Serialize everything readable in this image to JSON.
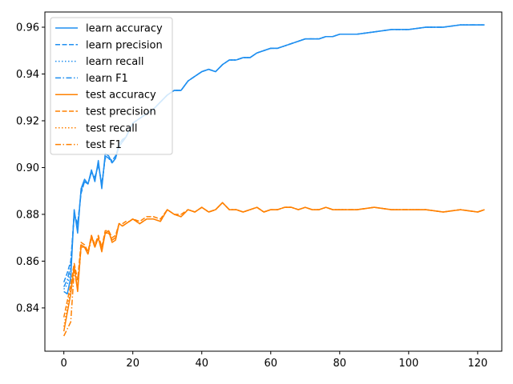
{
  "chart_data": {
    "type": "line",
    "title": "",
    "xlabel": "",
    "ylabel": "",
    "xlim": [
      -5.5,
      127
    ],
    "ylim": [
      0.8215,
      0.9665
    ],
    "xticks": [
      0,
      20,
      40,
      60,
      80,
      100,
      120
    ],
    "yticks": [
      0.84,
      0.86,
      0.88,
      0.9,
      0.92,
      0.94,
      0.96
    ],
    "ytick_labels": [
      "0.84",
      "0.86",
      "0.88",
      "0.90",
      "0.92",
      "0.94",
      "0.96"
    ],
    "grid": false,
    "legend_position": "top-left",
    "colors": {
      "learn": "#1f8ff0",
      "test": "#ff8000"
    },
    "series": [
      {
        "name": "learn accuracy",
        "group": "learn",
        "dash": "solid",
        "x": [
          0,
          1,
          2,
          3,
          4,
          5,
          6,
          7,
          8,
          9,
          10,
          11,
          12,
          13,
          14,
          15,
          16,
          17,
          18,
          19,
          20,
          22,
          24,
          26,
          28,
          30,
          32,
          34,
          36,
          38,
          40,
          42,
          44,
          46,
          48,
          50,
          52,
          54,
          56,
          58,
          60,
          62,
          64,
          66,
          68,
          70,
          72,
          74,
          76,
          78,
          80,
          85,
          90,
          95,
          100,
          105,
          110,
          115,
          120,
          122
        ],
        "y": [
          0.847,
          0.846,
          0.853,
          0.882,
          0.872,
          0.891,
          0.895,
          0.893,
          0.899,
          0.894,
          0.903,
          0.891,
          0.906,
          0.905,
          0.902,
          0.904,
          0.91,
          0.912,
          0.913,
          0.916,
          0.919,
          0.921,
          0.923,
          0.925,
          0.928,
          0.931,
          0.933,
          0.933,
          0.937,
          0.939,
          0.941,
          0.942,
          0.941,
          0.944,
          0.946,
          0.946,
          0.947,
          0.947,
          0.949,
          0.95,
          0.951,
          0.951,
          0.952,
          0.953,
          0.954,
          0.955,
          0.955,
          0.955,
          0.956,
          0.956,
          0.957,
          0.957,
          0.958,
          0.959,
          0.959,
          0.96,
          0.96,
          0.961,
          0.961,
          0.961
        ]
      },
      {
        "name": "learn precision",
        "group": "learn",
        "dash": "dashed",
        "x": [
          0,
          1,
          2,
          3,
          4,
          5,
          6,
          7,
          8,
          9,
          10,
          11,
          12,
          13,
          14,
          15,
          16,
          17,
          18,
          19,
          20,
          22,
          24,
          26,
          28,
          30,
          32,
          34,
          36,
          38,
          40,
          42,
          44,
          46,
          48,
          50,
          52,
          54,
          56,
          58,
          60,
          62,
          64,
          66,
          68,
          70,
          72,
          74,
          76,
          78,
          80,
          85,
          90,
          95,
          100,
          105,
          110,
          115,
          120,
          122
        ],
        "y": [
          0.851,
          0.855,
          0.86,
          0.88,
          0.876,
          0.889,
          0.894,
          0.893,
          0.898,
          0.896,
          0.901,
          0.893,
          0.904,
          0.904,
          0.903,
          0.905,
          0.909,
          0.911,
          0.913,
          0.916,
          0.919,
          0.921,
          0.923,
          0.925,
          0.928,
          0.931,
          0.933,
          0.933,
          0.937,
          0.939,
          0.941,
          0.942,
          0.941,
          0.944,
          0.946,
          0.946,
          0.947,
          0.947,
          0.949,
          0.95,
          0.951,
          0.951,
          0.952,
          0.953,
          0.954,
          0.955,
          0.955,
          0.955,
          0.956,
          0.956,
          0.957,
          0.957,
          0.958,
          0.959,
          0.959,
          0.96,
          0.96,
          0.961,
          0.961,
          0.961
        ]
      },
      {
        "name": "learn recall",
        "group": "learn",
        "dash": "dotted",
        "x": [
          0,
          1,
          2,
          3,
          4,
          5,
          6,
          7,
          8,
          9,
          10,
          11,
          12,
          13,
          14,
          15,
          16,
          17,
          18,
          19,
          20,
          22,
          24,
          26,
          28,
          30,
          32,
          34,
          36,
          38,
          40,
          42,
          44,
          46,
          48,
          50,
          52,
          54,
          56,
          58,
          60,
          62,
          64,
          66,
          68,
          70,
          72,
          74,
          76,
          78,
          80,
          85,
          90,
          95,
          100,
          105,
          110,
          115,
          120,
          122
        ],
        "y": [
          0.848,
          0.85,
          0.856,
          0.881,
          0.874,
          0.89,
          0.894,
          0.893,
          0.898,
          0.895,
          0.902,
          0.892,
          0.905,
          0.904,
          0.902,
          0.904,
          0.909,
          0.911,
          0.913,
          0.916,
          0.919,
          0.921,
          0.923,
          0.925,
          0.928,
          0.931,
          0.933,
          0.933,
          0.937,
          0.939,
          0.941,
          0.942,
          0.941,
          0.944,
          0.946,
          0.946,
          0.947,
          0.947,
          0.949,
          0.95,
          0.951,
          0.951,
          0.952,
          0.953,
          0.954,
          0.955,
          0.955,
          0.955,
          0.956,
          0.956,
          0.957,
          0.957,
          0.958,
          0.959,
          0.959,
          0.96,
          0.96,
          0.961,
          0.961,
          0.961
        ]
      },
      {
        "name": "learn F1",
        "group": "learn",
        "dash": "dashdot",
        "x": [
          0,
          1,
          2,
          3,
          4,
          5,
          6,
          7,
          8,
          9,
          10,
          11,
          12,
          13,
          14,
          15,
          16,
          17,
          18,
          19,
          20,
          22,
          24,
          26,
          28,
          30,
          32,
          34,
          36,
          38,
          40,
          42,
          44,
          46,
          48,
          50,
          52,
          54,
          56,
          58,
          60,
          62,
          64,
          66,
          68,
          70,
          72,
          74,
          76,
          78,
          80,
          85,
          90,
          95,
          100,
          105,
          110,
          115,
          120,
          122
        ],
        "y": [
          0.849,
          0.852,
          0.858,
          0.88,
          0.875,
          0.89,
          0.894,
          0.893,
          0.898,
          0.895,
          0.902,
          0.892,
          0.905,
          0.904,
          0.902,
          0.904,
          0.909,
          0.911,
          0.913,
          0.916,
          0.919,
          0.921,
          0.923,
          0.925,
          0.928,
          0.931,
          0.933,
          0.933,
          0.937,
          0.939,
          0.941,
          0.942,
          0.941,
          0.944,
          0.946,
          0.946,
          0.947,
          0.947,
          0.949,
          0.95,
          0.951,
          0.951,
          0.952,
          0.953,
          0.954,
          0.955,
          0.955,
          0.955,
          0.956,
          0.956,
          0.957,
          0.957,
          0.958,
          0.959,
          0.959,
          0.96,
          0.96,
          0.961,
          0.961,
          0.961
        ]
      },
      {
        "name": "test accuracy",
        "group": "test",
        "dash": "solid",
        "x": [
          0,
          1,
          2,
          3,
          4,
          5,
          6,
          7,
          8,
          9,
          10,
          11,
          12,
          13,
          14,
          15,
          16,
          17,
          18,
          19,
          20,
          22,
          24,
          26,
          28,
          30,
          32,
          34,
          36,
          38,
          40,
          42,
          44,
          46,
          48,
          50,
          52,
          54,
          56,
          58,
          60,
          62,
          64,
          66,
          68,
          70,
          72,
          74,
          76,
          78,
          80,
          85,
          90,
          95,
          100,
          105,
          110,
          115,
          120,
          122
        ],
        "y": [
          0.83,
          0.838,
          0.846,
          0.858,
          0.847,
          0.867,
          0.866,
          0.863,
          0.871,
          0.866,
          0.87,
          0.864,
          0.872,
          0.873,
          0.868,
          0.869,
          0.876,
          0.875,
          0.876,
          0.877,
          0.878,
          0.876,
          0.878,
          0.878,
          0.877,
          0.882,
          0.88,
          0.879,
          0.882,
          0.881,
          0.883,
          0.881,
          0.882,
          0.885,
          0.882,
          0.882,
          0.881,
          0.882,
          0.883,
          0.881,
          0.882,
          0.882,
          0.883,
          0.883,
          0.882,
          0.883,
          0.882,
          0.882,
          0.883,
          0.882,
          0.882,
          0.882,
          0.883,
          0.882,
          0.882,
          0.882,
          0.881,
          0.882,
          0.881,
          0.882
        ]
      },
      {
        "name": "test precision",
        "group": "test",
        "dash": "dashed",
        "x": [
          0,
          1,
          2,
          3,
          4,
          5,
          6,
          7,
          8,
          9,
          10,
          11,
          12,
          13,
          14,
          15,
          16,
          17,
          18,
          19,
          20,
          22,
          24,
          26,
          28,
          30,
          32,
          34,
          36,
          38,
          40,
          42,
          44,
          46,
          48,
          50,
          52,
          54,
          56,
          58,
          60,
          62,
          64,
          66,
          68,
          70,
          72,
          74,
          76,
          78,
          80,
          85,
          90,
          95,
          100,
          105,
          110,
          115,
          120,
          122
        ],
        "y": [
          0.836,
          0.843,
          0.85,
          0.859,
          0.852,
          0.868,
          0.867,
          0.864,
          0.871,
          0.867,
          0.871,
          0.866,
          0.873,
          0.873,
          0.87,
          0.871,
          0.876,
          0.876,
          0.877,
          0.877,
          0.878,
          0.877,
          0.879,
          0.879,
          0.878,
          0.882,
          0.88,
          0.88,
          0.882,
          0.881,
          0.883,
          0.881,
          0.882,
          0.885,
          0.882,
          0.882,
          0.881,
          0.882,
          0.883,
          0.881,
          0.882,
          0.882,
          0.883,
          0.883,
          0.882,
          0.883,
          0.882,
          0.882,
          0.883,
          0.882,
          0.882,
          0.882,
          0.883,
          0.882,
          0.882,
          0.882,
          0.881,
          0.882,
          0.881,
          0.882
        ]
      },
      {
        "name": "test recall",
        "group": "test",
        "dash": "dotted",
        "x": [
          0,
          1,
          2,
          3,
          4,
          5,
          6,
          7,
          8,
          9,
          10,
          11,
          12,
          13,
          14,
          15,
          16,
          17,
          18,
          19,
          20,
          22,
          24,
          26,
          28,
          30,
          32,
          34,
          36,
          38,
          40,
          42,
          44,
          46,
          48,
          50,
          52,
          54,
          56,
          58,
          60,
          62,
          64,
          66,
          68,
          70,
          72,
          74,
          76,
          78,
          80,
          85,
          90,
          95,
          100,
          105,
          110,
          115,
          120,
          122
        ],
        "y": [
          0.832,
          0.84,
          0.848,
          0.857,
          0.849,
          0.866,
          0.866,
          0.863,
          0.87,
          0.866,
          0.87,
          0.865,
          0.872,
          0.872,
          0.869,
          0.87,
          0.876,
          0.875,
          0.876,
          0.877,
          0.878,
          0.876,
          0.878,
          0.878,
          0.877,
          0.882,
          0.88,
          0.879,
          0.882,
          0.881,
          0.883,
          0.881,
          0.882,
          0.885,
          0.882,
          0.882,
          0.881,
          0.882,
          0.883,
          0.881,
          0.882,
          0.882,
          0.883,
          0.883,
          0.882,
          0.883,
          0.882,
          0.882,
          0.883,
          0.882,
          0.882,
          0.882,
          0.883,
          0.882,
          0.882,
          0.882,
          0.881,
          0.882,
          0.881,
          0.882
        ]
      },
      {
        "name": "test F1",
        "group": "test",
        "dash": "dashdot",
        "x": [
          0,
          1,
          2,
          3,
          4,
          5,
          6,
          7,
          8,
          9,
          10,
          11,
          12,
          13,
          14,
          15,
          16,
          17,
          18,
          19,
          20,
          22,
          24,
          26,
          28,
          30,
          32,
          34,
          36,
          38,
          40,
          42,
          44,
          46,
          48,
          50,
          52,
          54,
          56,
          58,
          60,
          62,
          64,
          66,
          68,
          70,
          72,
          74,
          76,
          78,
          80,
          85,
          90,
          95,
          100,
          105,
          110,
          115,
          120,
          122
        ],
        "y": [
          0.828,
          0.831,
          0.834,
          0.856,
          0.848,
          0.866,
          0.866,
          0.863,
          0.87,
          0.866,
          0.87,
          0.865,
          0.872,
          0.872,
          0.869,
          0.87,
          0.876,
          0.875,
          0.876,
          0.877,
          0.878,
          0.876,
          0.878,
          0.878,
          0.877,
          0.882,
          0.88,
          0.879,
          0.882,
          0.881,
          0.883,
          0.881,
          0.882,
          0.885,
          0.882,
          0.882,
          0.881,
          0.882,
          0.883,
          0.881,
          0.882,
          0.882,
          0.883,
          0.883,
          0.882,
          0.883,
          0.882,
          0.882,
          0.883,
          0.882,
          0.882,
          0.882,
          0.883,
          0.882,
          0.882,
          0.882,
          0.881,
          0.882,
          0.881,
          0.882
        ]
      }
    ]
  }
}
